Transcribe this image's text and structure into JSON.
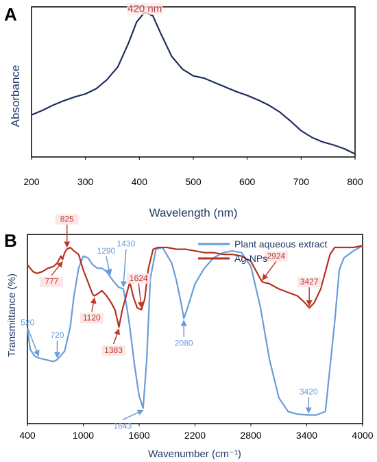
{
  "chart_data": [
    {
      "panel": "A",
      "type": "line",
      "xlabel": "Wavelength (nm)",
      "ylabel": "Absorbance",
      "xlim": [
        200,
        800
      ],
      "x_ticks": [
        "200",
        "300",
        "400",
        "500",
        "600",
        "700",
        "800"
      ],
      "grid": false,
      "annotations": [
        {
          "text": "420 nm",
          "x": 410,
          "color": "#c0392b"
        }
      ],
      "series": [
        {
          "color": "#1f2d5c",
          "x": [
            200,
            220,
            240,
            260,
            280,
            300,
            320,
            340,
            360,
            380,
            395,
            410,
            425,
            440,
            460,
            480,
            500,
            520,
            540,
            560,
            580,
            600,
            620,
            640,
            660,
            680,
            700,
            720,
            740,
            760,
            780,
            800
          ],
          "y": [
            0.28,
            0.31,
            0.345,
            0.375,
            0.4,
            0.42,
            0.455,
            0.515,
            0.6,
            0.76,
            0.9,
            0.965,
            0.94,
            0.82,
            0.67,
            0.585,
            0.54,
            0.525,
            0.495,
            0.465,
            0.435,
            0.41,
            0.38,
            0.345,
            0.3,
            0.24,
            0.175,
            0.13,
            0.1,
            0.08,
            0.055,
            0.02
          ]
        }
      ]
    },
    {
      "panel": "B",
      "type": "line",
      "xlabel": "Wavenumber (cm⁻¹)",
      "ylabel": "Transmittance   (%)",
      "xlim": [
        400,
        4000
      ],
      "x_ticks": [
        "400",
        "1000",
        "1600",
        "2200",
        "2800",
        "3400",
        "4000"
      ],
      "grid": false,
      "legend": "top-right",
      "series": [
        {
          "name": "Plant aqueous extract",
          "color": "#6a9bd8",
          "x": [
            400,
            430,
            480,
            520,
            600,
            680,
            720,
            800,
            860,
            900,
            950,
            1000,
            1050,
            1100,
            1150,
            1200,
            1250,
            1290,
            1330,
            1380,
            1430,
            1460,
            1500,
            1550,
            1600,
            1643,
            1680,
            1720,
            1780,
            1850,
            1950,
            2000,
            2050,
            2080,
            2120,
            2200,
            2300,
            2400,
            2500,
            2600,
            2700,
            2800,
            2900,
            3000,
            3100,
            3200,
            3300,
            3420,
            3500,
            3600,
            3700,
            3750,
            3800,
            3900,
            4000
          ],
          "y": [
            0.51,
            0.39,
            0.35,
            0.34,
            0.33,
            0.32,
            0.33,
            0.38,
            0.52,
            0.7,
            0.86,
            0.93,
            0.92,
            0.88,
            0.86,
            0.86,
            0.84,
            0.81,
            0.78,
            0.75,
            0.74,
            0.66,
            0.52,
            0.3,
            0.12,
            0.05,
            0.32,
            0.8,
            0.97,
            0.98,
            0.89,
            0.79,
            0.66,
            0.57,
            0.63,
            0.77,
            0.86,
            0.92,
            0.95,
            0.96,
            0.95,
            0.87,
            0.64,
            0.33,
            0.11,
            0.03,
            0.015,
            0.01,
            0.01,
            0.03,
            0.55,
            0.85,
            0.92,
            0.96,
            0.99
          ]
        },
        {
          "name": "Ag-NPs",
          "color": "#b5301f",
          "x": [
            400,
            430,
            460,
            500,
            560,
            620,
            680,
            720,
            760,
            777,
            800,
            825,
            860,
            900,
            950,
            1000,
            1050,
            1100,
            1120,
            1150,
            1200,
            1250,
            1300,
            1340,
            1383,
            1420,
            1460,
            1500,
            1540,
            1580,
            1624,
            1660,
            1700,
            1750,
            1800,
            1850,
            1900,
            2000,
            2100,
            2200,
            2300,
            2400,
            2500,
            2600,
            2700,
            2800,
            2900,
            2924,
            3000,
            3100,
            3200,
            3300,
            3380,
            3427,
            3480,
            3550,
            3600,
            3650,
            3700,
            3800,
            3900,
            4000
          ],
          "y": [
            0.88,
            0.86,
            0.84,
            0.83,
            0.84,
            0.86,
            0.87,
            0.89,
            0.93,
            0.91,
            0.95,
            0.97,
            0.98,
            0.96,
            0.94,
            0.85,
            0.78,
            0.71,
            0.7,
            0.71,
            0.73,
            0.7,
            0.66,
            0.62,
            0.52,
            0.62,
            0.7,
            0.78,
            0.69,
            0.63,
            0.62,
            0.68,
            0.86,
            0.97,
            0.98,
            0.98,
            0.98,
            0.97,
            0.97,
            0.96,
            0.95,
            0.95,
            0.94,
            0.94,
            0.93,
            0.9,
            0.8,
            0.78,
            0.77,
            0.74,
            0.72,
            0.7,
            0.66,
            0.63,
            0.66,
            0.74,
            0.84,
            0.94,
            0.98,
            0.98,
            0.98,
            0.99
          ]
        }
      ],
      "annotations": [
        {
          "text": "825",
          "x": 825,
          "color": "#c0392b"
        },
        {
          "text": "777",
          "x": 777,
          "color": "#c0392b"
        },
        {
          "text": "1120",
          "x": 1120,
          "color": "#c0392b"
        },
        {
          "text": "1383",
          "x": 1383,
          "color": "#c0392b"
        },
        {
          "text": "1624",
          "x": 1624,
          "color": "#c0392b"
        },
        {
          "text": "2924",
          "x": 2924,
          "color": "#c0392b"
        },
        {
          "text": "3427",
          "x": 3427,
          "color": "#c0392b"
        },
        {
          "text": "1430",
          "x": 1430,
          "color": "#6a9bd8"
        },
        {
          "text": "1290",
          "x": 1290,
          "color": "#6a9bd8"
        },
        {
          "text": "520",
          "x": 520,
          "color": "#6a9bd8"
        },
        {
          "text": "720",
          "x": 720,
          "color": "#6a9bd8"
        },
        {
          "text": "2080",
          "x": 2080,
          "color": "#6a9bd8"
        },
        {
          "text": "1643",
          "x": 1643,
          "color": "#6a9bd8"
        },
        {
          "text": "3420",
          "x": 3420,
          "color": "#6a9bd8"
        }
      ]
    }
  ]
}
